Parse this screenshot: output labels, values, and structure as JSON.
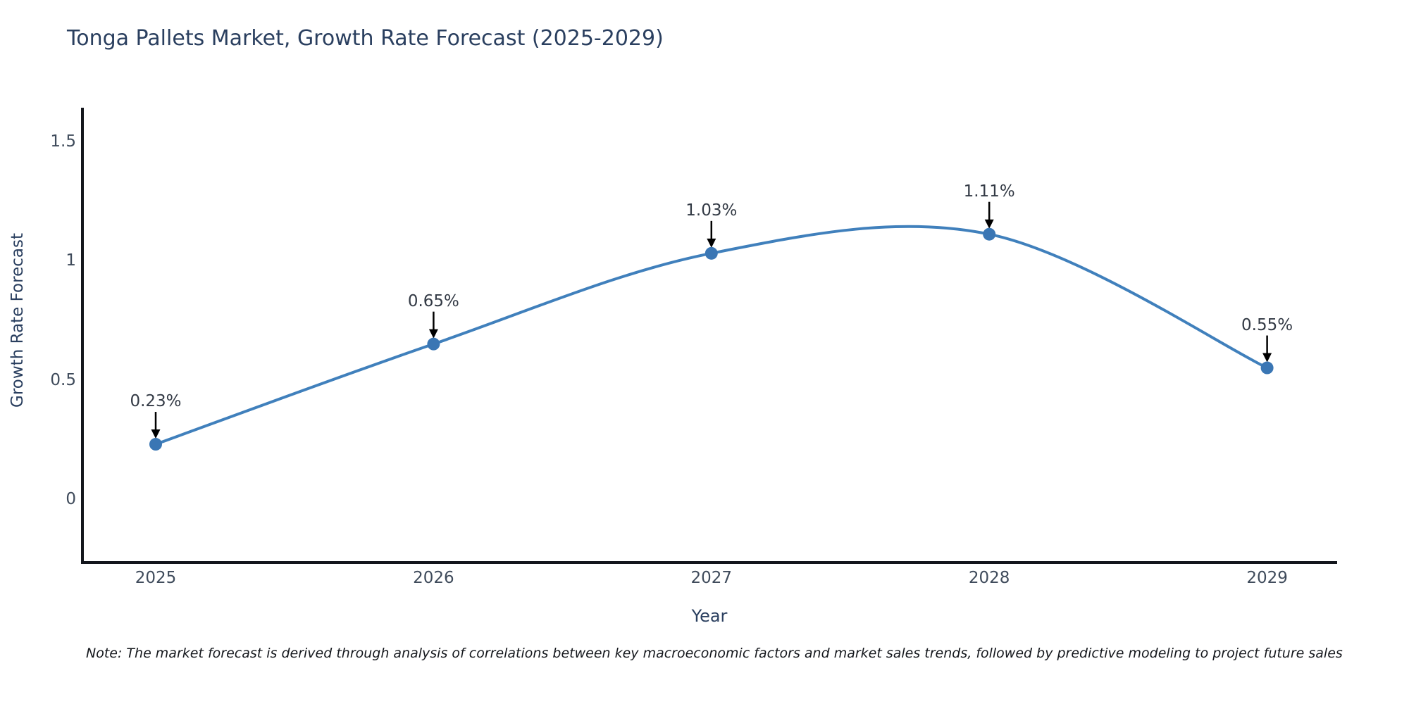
{
  "note": {
    "text": "Note: The market forecast is derived through analysis of correlations between key macroeconomic factors and market sales trends, followed by predictive modeling to project future sales"
  },
  "chart_data": {
    "type": "line",
    "title": "Tonga Pallets Market, Growth Rate Forecast (2025-2029)",
    "xlabel": "Year",
    "ylabel": "Growth Rate Forecast",
    "categories": [
      "2025",
      "2026",
      "2027",
      "2028",
      "2029"
    ],
    "values": [
      0.23,
      0.65,
      1.03,
      1.11,
      0.55
    ],
    "point_labels": [
      "0.23%",
      "0.65%",
      "1.03%",
      "1.11%",
      "0.55%"
    ],
    "ytick_values": [
      0,
      0.5,
      1,
      1.5
    ],
    "ytick_labels": [
      "0",
      "0.5",
      "1",
      "1.5"
    ],
    "ylim": [
      -0.27,
      1.64
    ],
    "line_shape": "spline",
    "grid": false,
    "legend": "none",
    "annotation_style": "value label with black arrow pointing down to marker",
    "colors": {
      "line": "#4080bc",
      "marker": "#3a76b4",
      "axis": "#13161c",
      "title": "#2a3f5f",
      "tick_label": "#3f4b5b",
      "annotation_text": "#333a45",
      "arrow": "#000000",
      "background": "#ffffff"
    }
  }
}
